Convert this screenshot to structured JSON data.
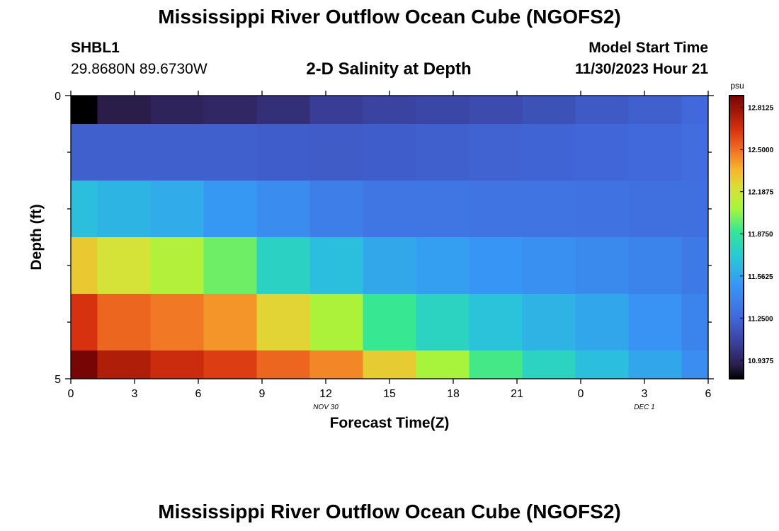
{
  "header": {
    "title": "Mississippi River Outflow Ocean Cube (NGOFS2)",
    "station_id": "SHBL1",
    "station_coords": "29.8680N  89.6730W",
    "subtitle": "2-D Salinity at Depth",
    "model_start_label": "Model Start Time",
    "model_start_value": "11/30/2023 Hour 21"
  },
  "footer": {
    "title": "Mississippi River Outflow Ocean Cube (NGOFS2)"
  },
  "chart_data": {
    "type": "heatmap",
    "title": "2-D Salinity at Depth",
    "xlabel": "Forecast Time(Z)",
    "ylabel": "Depth (ft)",
    "x_ticks": [
      "0",
      "3",
      "6",
      "9",
      "12",
      "15",
      "18",
      "21",
      "0",
      "3",
      "6"
    ],
    "x_range_hours": [
      0,
      30
    ],
    "x_date_labels": [
      {
        "label": "NOV 30",
        "at_hour": 12
      },
      {
        "label": "DEC 1",
        "at_hour": 27
      }
    ],
    "y_ticks": [
      "0",
      "5"
    ],
    "y_range": [
      0,
      5
    ],
    "colorbar": {
      "unit": "psu",
      "min": 10.8,
      "max": 12.9,
      "ticks": [
        "12.8125",
        "12.5000",
        "12.1875",
        "11.8750",
        "11.5625",
        "11.2500",
        "10.9375"
      ]
    },
    "column_edges_hours": [
      0,
      1.25,
      3.75,
      6.25,
      8.75,
      11.25,
      13.75,
      16.25,
      18.75,
      21.25,
      23.75,
      26.25,
      28.75,
      30
    ],
    "row_edges_ft": [
      0,
      0.5,
      1.5,
      2.5,
      3.5,
      4.5,
      5
    ],
    "values": [
      [
        10.8,
        10.9,
        10.93,
        10.95,
        10.99,
        11.05,
        11.08,
        11.1,
        11.12,
        11.15,
        11.19,
        11.22,
        11.26
      ],
      [
        11.22,
        11.22,
        11.22,
        11.22,
        11.21,
        11.2,
        11.21,
        11.22,
        11.23,
        11.24,
        11.25,
        11.26,
        11.28
      ],
      [
        11.66,
        11.62,
        11.58,
        11.5,
        11.44,
        11.37,
        11.33,
        11.33,
        11.32,
        11.32,
        11.31,
        11.3,
        11.3
      ],
      [
        12.29,
        12.2,
        12.1,
        11.98,
        11.76,
        11.66,
        11.57,
        11.53,
        11.49,
        11.46,
        11.43,
        11.4,
        11.35
      ],
      [
        12.65,
        12.52,
        12.48,
        12.42,
        12.25,
        12.08,
        11.9,
        11.77,
        11.68,
        11.61,
        11.56,
        11.48,
        11.4
      ],
      [
        12.92,
        12.75,
        12.68,
        12.62,
        12.52,
        12.45,
        12.28,
        12.07,
        11.92,
        11.77,
        11.66,
        11.56,
        11.45
      ]
    ]
  }
}
